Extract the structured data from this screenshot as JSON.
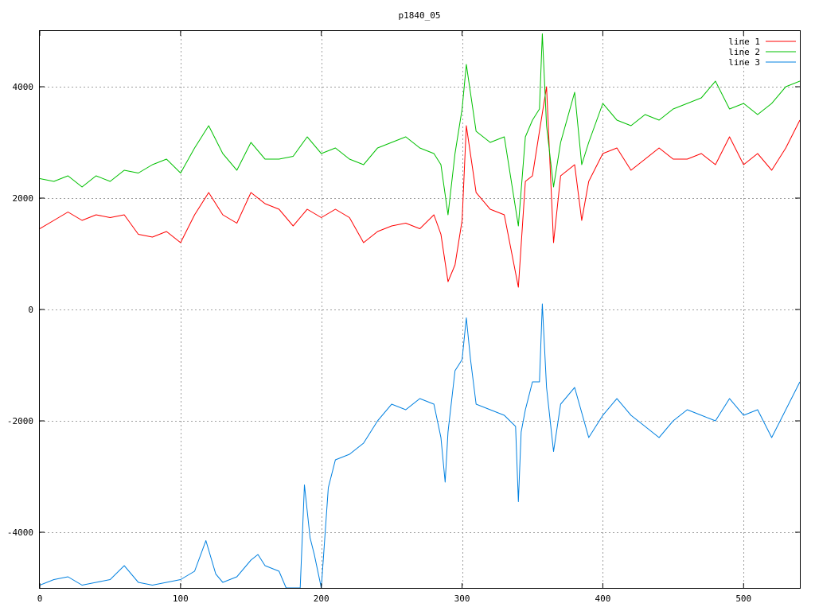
{
  "chart_data": {
    "type": "line",
    "title": "p1840_05",
    "xlabel": "",
    "ylabel": "",
    "xlim": [
      0,
      540
    ],
    "ylim": [
      -5000,
      5000
    ],
    "xticks": [
      0,
      100,
      200,
      300,
      400,
      500
    ],
    "yticks": [
      -4000,
      -2000,
      0,
      2000,
      4000
    ],
    "xtick_labels": [
      "0",
      "100",
      "200",
      "300",
      "400",
      "500"
    ],
    "ytick_labels": [
      "-4000",
      "-2000",
      "0",
      "2000",
      "4000"
    ],
    "grid": true,
    "legend_position": "top-right",
    "series": [
      {
        "name": "line 1",
        "color": "#ff0000",
        "x": [
          0,
          10,
          20,
          30,
          40,
          50,
          60,
          70,
          80,
          90,
          100,
          110,
          120,
          130,
          140,
          150,
          160,
          170,
          180,
          190,
          200,
          210,
          220,
          230,
          240,
          250,
          260,
          270,
          280,
          285,
          290,
          295,
          300,
          303,
          310,
          320,
          330,
          340,
          345,
          350,
          355,
          360,
          365,
          370,
          380,
          385,
          390,
          400,
          410,
          420,
          430,
          440,
          450,
          460,
          470,
          480,
          490,
          500,
          510,
          520,
          530,
          540
        ],
        "y": [
          1450,
          1600,
          1750,
          1600,
          1700,
          1650,
          1700,
          1350,
          1300,
          1400,
          1200,
          1700,
          2100,
          1700,
          1550,
          2100,
          1900,
          1800,
          1500,
          1800,
          1650,
          1800,
          1650,
          1200,
          1400,
          1500,
          1550,
          1450,
          1700,
          1350,
          500,
          800,
          1600,
          3300,
          2100,
          1800,
          1700,
          400,
          2300,
          2400,
          3200,
          4000,
          1200,
          2400,
          2600,
          1600,
          2300,
          2800,
          2900,
          2500,
          2700,
          2900,
          2700,
          2700,
          2800,
          2600,
          3100,
          2600,
          2800,
          2500,
          2900,
          3400
        ]
      },
      {
        "name": "line 2",
        "color": "#00c000",
        "x": [
          0,
          10,
          20,
          30,
          40,
          50,
          60,
          70,
          80,
          90,
          100,
          110,
          120,
          130,
          140,
          150,
          160,
          170,
          180,
          190,
          200,
          210,
          220,
          230,
          240,
          250,
          260,
          270,
          280,
          285,
          290,
          295,
          300,
          303,
          310,
          320,
          330,
          340,
          345,
          350,
          355,
          357,
          360,
          365,
          370,
          380,
          385,
          390,
          400,
          410,
          420,
          430,
          440,
          450,
          460,
          470,
          480,
          490,
          500,
          510,
          520,
          530,
          540
        ],
        "y": [
          2350,
          2300,
          2400,
          2200,
          2400,
          2300,
          2500,
          2450,
          2600,
          2700,
          2450,
          2900,
          3300,
          2800,
          2500,
          3000,
          2700,
          2700,
          2750,
          3100,
          2800,
          2900,
          2700,
          2600,
          2900,
          3000,
          3100,
          2900,
          2800,
          2600,
          1700,
          2800,
          3600,
          4400,
          3200,
          3000,
          3100,
          1500,
          3100,
          3400,
          3600,
          4950,
          3300,
          2200,
          3000,
          3900,
          2600,
          3000,
          3700,
          3400,
          3300,
          3500,
          3400,
          3600,
          3700,
          3800,
          4100,
          3600,
          3700,
          3500,
          3700,
          4000,
          4100
        ]
      },
      {
        "name": "line 3",
        "color": "#0080e0",
        "x": [
          0,
          10,
          20,
          30,
          40,
          50,
          60,
          70,
          80,
          90,
          100,
          110,
          118,
          125,
          130,
          140,
          150,
          155,
          160,
          170,
          175,
          180,
          185,
          188,
          192,
          195,
          200,
          205,
          210,
          220,
          230,
          240,
          250,
          260,
          270,
          280,
          285,
          288,
          290,
          295,
          300,
          303,
          306,
          310,
          320,
          330,
          338,
          340,
          342,
          345,
          350,
          355,
          357,
          360,
          365,
          370,
          380,
          390,
          400,
          410,
          420,
          430,
          440,
          450,
          460,
          470,
          480,
          490,
          500,
          510,
          520,
          530,
          540
        ],
        "y": [
          -4950,
          -4850,
          -4800,
          -4950,
          -4900,
          -4850,
          -4600,
          -4900,
          -4950,
          -4900,
          -4850,
          -4700,
          -4150,
          -4750,
          -4900,
          -4800,
          -4500,
          -4400,
          -4600,
          -4700,
          -5000,
          -5000,
          -5000,
          -3150,
          -4100,
          -4400,
          -5000,
          -3200,
          -2700,
          -2600,
          -2400,
          -2000,
          -1700,
          -1800,
          -1600,
          -1700,
          -2300,
          -3100,
          -2200,
          -1100,
          -900,
          -150,
          -900,
          -1700,
          -1800,
          -1900,
          -2100,
          -3450,
          -2200,
          -1800,
          -1300,
          -1300,
          100,
          -1400,
          -2550,
          -1700,
          -1400,
          -2300,
          -1900,
          -1600,
          -1900,
          -2100,
          -2300,
          -2000,
          -1800,
          -1900,
          -2000,
          -1600,
          -1900,
          -1800,
          -2300,
          -1800,
          -1300
        ]
      }
    ]
  }
}
